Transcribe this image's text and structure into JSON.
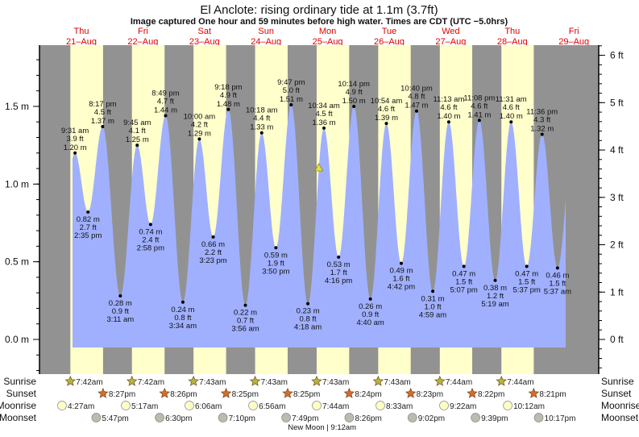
{
  "chart_data": {
    "type": "area",
    "title": "El Anclote: rising  ordinary tide at 1.1m (3.7ft)",
    "subtitle": "Image captured One hour and 59 minutes before high water. Times are CDT (UTC −5.0hrs)",
    "colors": {
      "night": "#929292",
      "day": "#ffffcc",
      "water": "#a0b0ff",
      "date_text": "#e00000",
      "sunrise_icon": "#b8b43c",
      "sunset_icon": "#d86c2c",
      "moonrise_icon": "#ffffc8",
      "moonset_icon": "#bdbab0",
      "current_marker": "#e8e040"
    },
    "y_left": {
      "unit": "m",
      "ylim": [
        -0.11,
        1.96
      ],
      "ticks": [
        "0.0 m",
        "0.5 m",
        "1.0 m",
        "1.5 m"
      ],
      "tick_values": [
        0,
        0.5,
        1.0,
        1.5
      ]
    },
    "y_right": {
      "unit": "ft",
      "ticks": [
        "0 ft",
        "1 ft",
        "2 ft",
        "3 ft",
        "4 ft",
        "5 ft",
        "6 ft"
      ],
      "tick_values": [
        0,
        1,
        2,
        3,
        4,
        5,
        6
      ]
    },
    "days": [
      {
        "name": "Thu",
        "date": "21–Aug"
      },
      {
        "name": "Fri",
        "date": "22–Aug"
      },
      {
        "name": "Sat",
        "date": "23–Aug"
      },
      {
        "name": "Sun",
        "date": "24–Aug"
      },
      {
        "name": "Mon",
        "date": "25–Aug"
      },
      {
        "name": "Tue",
        "date": "26–Aug"
      },
      {
        "name": "Wed",
        "date": "27–Aug"
      },
      {
        "name": "Thu",
        "date": "28–Aug"
      },
      {
        "name": "Fri",
        "date": "29–Aug"
      }
    ],
    "extremes": [
      {
        "day": 0,
        "type": "high",
        "time": "9:31 am",
        "m": "1.20 m",
        "ft": "3.9 ft",
        "value": 1.2
      },
      {
        "day": 0,
        "type": "low",
        "time": "2:35 pm",
        "m": "0.82 m",
        "ft": "2.7 ft",
        "value": 0.82
      },
      {
        "day": 0,
        "type": "high",
        "time": "8:17 pm",
        "m": "1.37 m",
        "ft": "4.5 ft",
        "value": 1.37
      },
      {
        "day": 1,
        "type": "low",
        "time": "3:11 am",
        "m": "0.28 m",
        "ft": "0.9 ft",
        "value": 0.28
      },
      {
        "day": 1,
        "type": "high",
        "time": "9:45 am",
        "m": "1.25 m",
        "ft": "4.1 ft",
        "value": 1.25
      },
      {
        "day": 1,
        "type": "low",
        "time": "2:58 pm",
        "m": "0.74 m",
        "ft": "2.4 ft",
        "value": 0.74
      },
      {
        "day": 1,
        "type": "high",
        "time": "8:49 pm",
        "m": "1.44 m",
        "ft": "4.7 ft",
        "value": 1.44
      },
      {
        "day": 2,
        "type": "low",
        "time": "3:34 am",
        "m": "0.24 m",
        "ft": "0.8 ft",
        "value": 0.24
      },
      {
        "day": 2,
        "type": "high",
        "time": "10:00 am",
        "m": "1.29 m",
        "ft": "4.2 ft",
        "value": 1.29
      },
      {
        "day": 2,
        "type": "low",
        "time": "3:23 pm",
        "m": "0.66 m",
        "ft": "2.2 ft",
        "value": 0.66
      },
      {
        "day": 2,
        "type": "high",
        "time": "9:18 pm",
        "m": "1.48 m",
        "ft": "4.9 ft",
        "value": 1.48
      },
      {
        "day": 3,
        "type": "low",
        "time": "3:56 am",
        "m": "0.22 m",
        "ft": "0.7 ft",
        "value": 0.22
      },
      {
        "day": 3,
        "type": "high",
        "time": "10:18 am",
        "m": "1.33 m",
        "ft": "4.4 ft",
        "value": 1.33
      },
      {
        "day": 3,
        "type": "low",
        "time": "3:50 pm",
        "m": "0.59 m",
        "ft": "1.9 ft",
        "value": 0.59
      },
      {
        "day": 3,
        "type": "high",
        "time": "9:47 pm",
        "m": "1.51 m",
        "ft": "5.0 ft",
        "value": 1.51
      },
      {
        "day": 4,
        "type": "low",
        "time": "4:18 am",
        "m": "0.23 m",
        "ft": "0.8 ft",
        "value": 0.23
      },
      {
        "day": 4,
        "type": "high",
        "time": "10:34 am",
        "m": "1.36 m",
        "ft": "4.5 ft",
        "value": 1.36
      },
      {
        "day": 4,
        "type": "low",
        "time": "4:16 pm",
        "m": "0.53 m",
        "ft": "1.7 ft",
        "value": 0.53
      },
      {
        "day": 4,
        "type": "high",
        "time": "10:14 pm",
        "m": "1.50 m",
        "ft": "4.9 ft",
        "value": 1.5
      },
      {
        "day": 5,
        "type": "low",
        "time": "4:40 am",
        "m": "0.26 m",
        "ft": "0.9 ft",
        "value": 0.26
      },
      {
        "day": 5,
        "type": "high",
        "time": "10:54 am",
        "m": "1.39 m",
        "ft": "4.6 ft",
        "value": 1.39
      },
      {
        "day": 5,
        "type": "low",
        "time": "4:42 pm",
        "m": "0.49 m",
        "ft": "1.6 ft",
        "value": 0.49
      },
      {
        "day": 5,
        "type": "high",
        "time": "10:40 pm",
        "m": "1.47 m",
        "ft": "4.8 ft",
        "value": 1.47
      },
      {
        "day": 6,
        "type": "low",
        "time": "4:59 am",
        "m": "0.31 m",
        "ft": "1.0 ft",
        "value": 0.31
      },
      {
        "day": 6,
        "type": "high",
        "time": "11:13 am",
        "m": "1.40 m",
        "ft": "4.6 ft",
        "value": 1.4
      },
      {
        "day": 6,
        "type": "low",
        "time": "5:07 pm",
        "m": "0.47 m",
        "ft": "1.5 ft",
        "value": 0.47
      },
      {
        "day": 6,
        "type": "high",
        "time": "11:08 pm",
        "m": "1.41 m",
        "ft": "4.6 ft",
        "value": 1.41
      },
      {
        "day": 7,
        "type": "low",
        "time": "5:19 am",
        "m": "0.38 m",
        "ft": "1.2 ft",
        "value": 0.38
      },
      {
        "day": 7,
        "type": "high",
        "time": "11:31 am",
        "m": "1.40 m",
        "ft": "4.6 ft",
        "value": 1.4
      },
      {
        "day": 7,
        "type": "low",
        "time": "5:37 pm",
        "m": "0.47 m",
        "ft": "1.5 ft",
        "value": 0.47
      },
      {
        "day": 7,
        "type": "high",
        "time": "11:36 pm",
        "m": "1.32 m",
        "ft": "4.3 ft",
        "value": 1.32
      },
      {
        "day": 8,
        "type": "low",
        "time": "5:37 am",
        "m": "0.46 m",
        "ft": "1.5 ft",
        "value": 0.46
      }
    ],
    "current": {
      "level_m": 1.1,
      "level_ft": 3.7,
      "state": "rising"
    },
    "rows": {
      "sunrise": {
        "label": "Sunrise",
        "events": [
          {
            "day": 0,
            "time": "7:42am"
          },
          {
            "day": 1,
            "time": "7:42am"
          },
          {
            "day": 2,
            "time": "7:43am"
          },
          {
            "day": 3,
            "time": "7:43am"
          },
          {
            "day": 4,
            "time": "7:43am"
          },
          {
            "day": 5,
            "time": "7:43am"
          },
          {
            "day": 6,
            "time": "7:44am"
          },
          {
            "day": 7,
            "time": "7:44am"
          }
        ]
      },
      "sunset": {
        "label": "Sunset",
        "events": [
          {
            "day": 0,
            "time": "8:27pm"
          },
          {
            "day": 1,
            "time": "8:26pm"
          },
          {
            "day": 2,
            "time": "8:25pm"
          },
          {
            "day": 3,
            "time": "8:25pm"
          },
          {
            "day": 4,
            "time": "8:24pm"
          },
          {
            "day": 5,
            "time": "8:23pm"
          },
          {
            "day": 6,
            "time": "8:22pm"
          },
          {
            "day": 7,
            "time": "8:21pm"
          }
        ]
      },
      "moonrise": {
        "label": "Moonrise",
        "events": [
          {
            "day": 0,
            "time": "4:27am"
          },
          {
            "day": 1,
            "time": "5:17am"
          },
          {
            "day": 2,
            "time": "6:06am"
          },
          {
            "day": 3,
            "time": "6:56am"
          },
          {
            "day": 4,
            "time": "7:44am"
          },
          {
            "day": 5,
            "time": "8:33am"
          },
          {
            "day": 6,
            "time": "9:22am"
          },
          {
            "day": 7,
            "time": "10:12am"
          }
        ]
      },
      "moonset": {
        "label": "Moonset",
        "events": [
          {
            "day": 0,
            "time": "5:47pm"
          },
          {
            "day": 1,
            "time": "6:30pm"
          },
          {
            "day": 2,
            "time": "7:10pm"
          },
          {
            "day": 3,
            "time": "7:49pm"
          },
          {
            "day": 4,
            "time": "8:26pm"
          },
          {
            "day": 5,
            "time": "9:02pm"
          },
          {
            "day": 6,
            "time": "9:39pm"
          },
          {
            "day": 7,
            "time": "10:17pm"
          }
        ]
      }
    },
    "moon_phase": {
      "label": "New Moon | 9:12am",
      "day": 4,
      "time": "9:12am"
    }
  }
}
